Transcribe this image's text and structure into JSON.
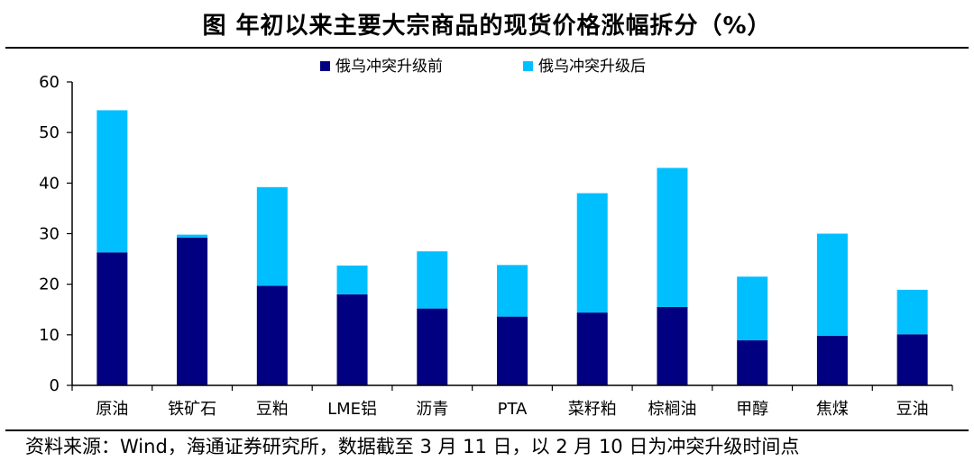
{
  "title": "图  年初以来主要大宗商品的现货价格涨幅拆分（%）",
  "source": "资料来源：Wind，海通证券研究所，数据截至 3 月 11 日，以 2 月 10 日为冲突升级时间点",
  "colors": {
    "before": "#000080",
    "after": "#00bfff",
    "axis": "#000000"
  },
  "chart_data": {
    "type": "bar",
    "stacked": true,
    "categories": [
      "原油",
      "铁矿石",
      "豆粕",
      "LME铝",
      "沥青",
      "PTA",
      "菜籽粕",
      "棕榈油",
      "甲醇",
      "焦煤",
      "豆油"
    ],
    "series": [
      {
        "name": "俄乌冲突升级前",
        "values": [
          26.3,
          29.2,
          19.7,
          18.0,
          15.2,
          13.6,
          14.4,
          15.5,
          8.9,
          9.8,
          10.1
        ]
      },
      {
        "name": "俄乌冲突升级后",
        "values": [
          28.1,
          0.6,
          19.5,
          5.7,
          11.3,
          10.2,
          23.6,
          27.5,
          12.6,
          20.2,
          8.8
        ]
      }
    ],
    "y_ticks": [
      "0",
      "10",
      "20",
      "30",
      "40",
      "50",
      "60"
    ],
    "ylim": [
      0,
      60
    ],
    "legend_position": "top-center",
    "grid": false
  }
}
